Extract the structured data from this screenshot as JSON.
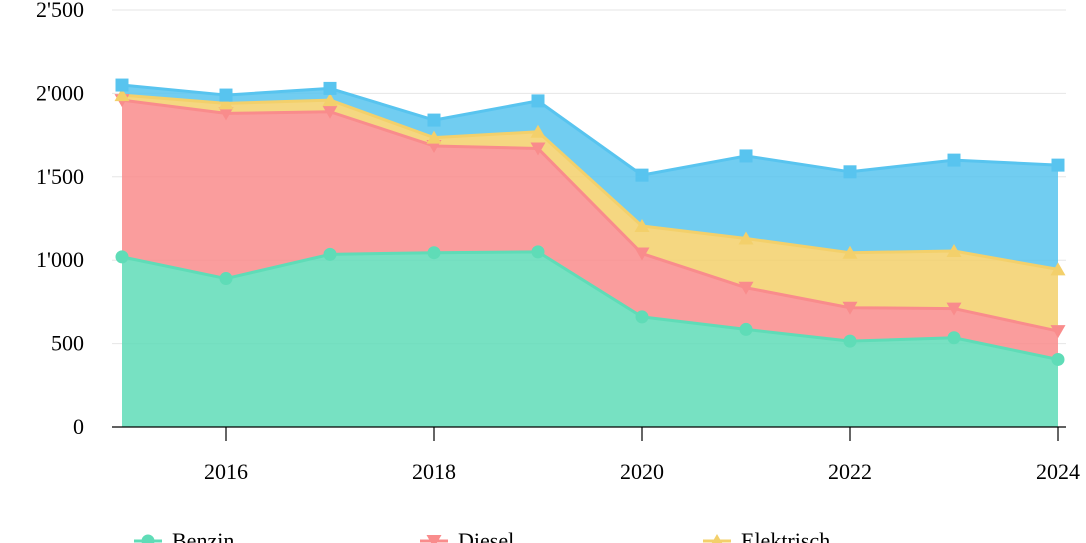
{
  "chart_data": {
    "type": "area",
    "stacked": true,
    "x": [
      2015,
      2016,
      2017,
      2018,
      2019,
      2020,
      2021,
      2022,
      2023,
      2024
    ],
    "x_tick_labels": [
      "2016",
      "2018",
      "2020",
      "2022",
      "2024"
    ],
    "x_ticks": [
      2016,
      2018,
      2020,
      2022,
      2024
    ],
    "ylim": [
      0,
      2500
    ],
    "y_ticks": [
      0,
      500,
      1000,
      1500,
      2000,
      2500
    ],
    "y_tick_labels": [
      "0",
      "500",
      "1'000",
      "1'500",
      "2'000",
      "2'500"
    ],
    "grid": true,
    "legend_position": "bottom",
    "series": [
      {
        "name": "Benzin",
        "color": "#5fdcb7",
        "marker": "circle",
        "values": [
          1020,
          890,
          1035,
          1045,
          1050,
          660,
          585,
          515,
          535,
          405
        ]
      },
      {
        "name": "Diesel",
        "color": "#f98c8c",
        "marker": "triangle-down",
        "values": [
          940,
          990,
          855,
          640,
          620,
          380,
          250,
          200,
          175,
          170
        ]
      },
      {
        "name": "Elektrisch",
        "color": "#f3d06b",
        "marker": "triangle-up",
        "values": [
          30,
          60,
          70,
          50,
          100,
          165,
          295,
          330,
          345,
          370
        ]
      },
      {
        "name": "",
        "color": "#58c4ef",
        "marker": "square",
        "values": [
          60,
          50,
          70,
          105,
          185,
          305,
          495,
          485,
          545,
          625
        ]
      }
    ]
  }
}
